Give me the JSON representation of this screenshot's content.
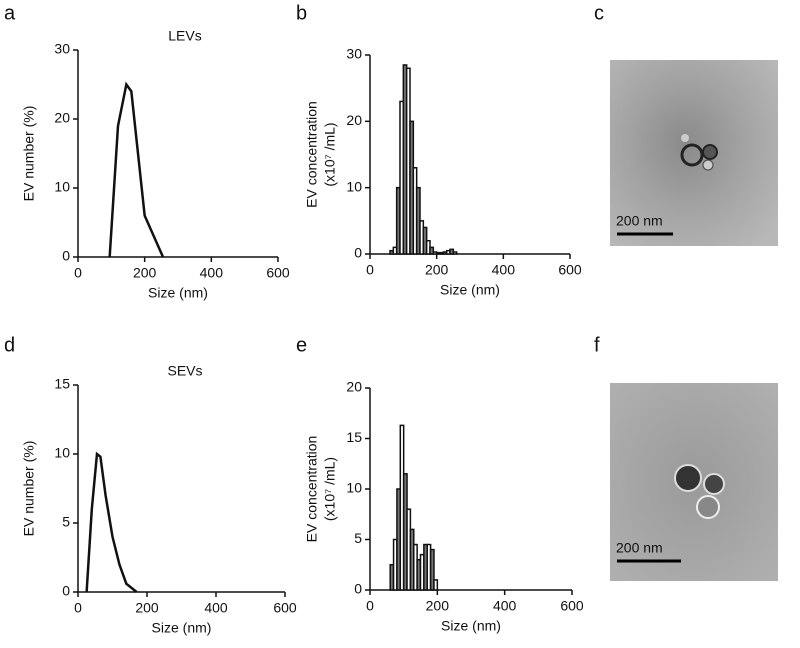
{
  "panel_labels": [
    "a",
    "b",
    "c",
    "d",
    "e",
    "f"
  ],
  "images": [
    {
      "scale_label": "200 nm"
    },
    {
      "scale_label": "200 nm"
    }
  ],
  "chart_data": [
    {
      "type": "line",
      "title": "LEVs",
      "xlabel": "Size (nm)",
      "ylabel": [
        "EV number (%)"
      ],
      "x": [
        95,
        120,
        145,
        160,
        200,
        255
      ],
      "values": [
        0,
        19,
        25,
        24,
        6,
        0
      ],
      "color": "#111111",
      "xlim": [
        0,
        600
      ],
      "xticks": [
        0,
        200,
        400,
        600
      ],
      "ylim": [
        0,
        30
      ],
      "yticks": [
        0,
        10,
        20,
        30
      ]
    },
    {
      "type": "histogram",
      "xlabel": "Size (nm)",
      "ylabel": [
        "EV concentration",
        "(x10⁷ /mL)"
      ],
      "bins": [
        60,
        70,
        80,
        90,
        100,
        110,
        120,
        130,
        140,
        150,
        160,
        170,
        180,
        190,
        200,
        210,
        220,
        230,
        240,
        250,
        260
      ],
      "values": [
        0.5,
        1,
        10,
        23,
        28.5,
        28,
        20,
        13,
        10,
        5,
        4,
        2,
        1,
        0.3,
        0.2,
        0.2,
        0.3,
        0.5,
        0.7,
        0.3
      ],
      "color": "#111111",
      "xlim": [
        0,
        600
      ],
      "xticks": [
        0,
        200,
        400,
        600
      ],
      "ylim": [
        0,
        30
      ],
      "yticks": [
        0,
        10,
        20,
        30
      ]
    },
    {
      "type": "line",
      "title": "SEVs",
      "xlabel": "Size (nm)",
      "ylabel": [
        "EV number (%)"
      ],
      "x": [
        25,
        40,
        55,
        65,
        80,
        100,
        120,
        140,
        170
      ],
      "values": [
        0,
        6,
        10,
        9.8,
        7,
        4,
        2,
        0.6,
        0
      ],
      "color": "#111111",
      "xlim": [
        0,
        600
      ],
      "xticks": [
        0,
        200,
        400,
        600
      ],
      "ylim": [
        0,
        15
      ],
      "yticks": [
        0,
        5,
        10,
        15
      ]
    },
    {
      "type": "histogram",
      "xlabel": "Size (nm)",
      "ylabel": [
        "EV concentration",
        "(x10⁷ /mL)"
      ],
      "bins": [
        60,
        70,
        80,
        90,
        100,
        110,
        120,
        130,
        140,
        150,
        160,
        170,
        180,
        190,
        200
      ],
      "values": [
        2.5,
        5,
        10,
        16.3,
        11.5,
        8,
        6,
        4.5,
        3,
        3.5,
        4.5,
        4.5,
        4,
        1
      ],
      "color": "#111111",
      "xlim": [
        0,
        600
      ],
      "xticks": [
        0,
        200,
        400,
        600
      ],
      "ylim": [
        0,
        20
      ],
      "yticks": [
        0,
        5,
        10,
        15,
        20
      ]
    }
  ]
}
